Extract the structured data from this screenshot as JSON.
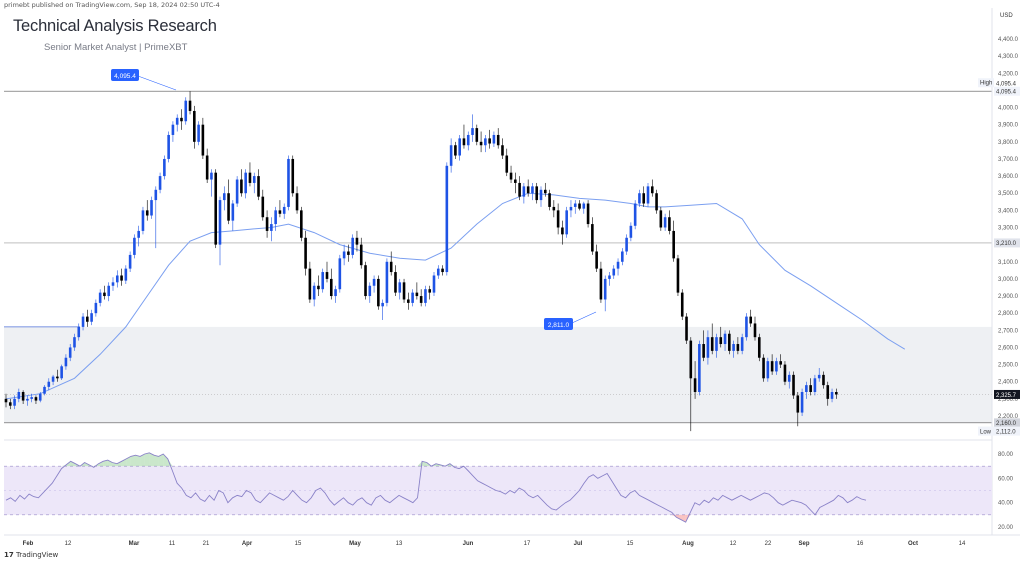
{
  "header": {
    "published_by": "primebt published on TradingView.com, Sep 18, 2024 02:50 UTC-4",
    "title": "Technical Analysis Research",
    "subtitle": "Senior Market Analyst | PrimeXBT"
  },
  "footer": {
    "brand": "TradingView"
  },
  "price_axis": {
    "currency": "USD",
    "ticks": [
      "4,400.0",
      "4,300.0",
      "4,200.0",
      "4,100.0",
      "4,000.0",
      "3,900.0",
      "3,800.0",
      "3,700.0",
      "3,600.0",
      "3,500.0",
      "3,400.0",
      "3,300.0",
      "3,200.0",
      "3,100.0",
      "3,000.0",
      "2,900.0",
      "2,800.0",
      "2,700.0",
      "2,600.0",
      "2,500.0",
      "2,400.0",
      "2,300.0",
      "2,200.0"
    ],
    "tick_values": [
      4400,
      4300,
      4200,
      4100,
      4000,
      3900,
      3800,
      3700,
      3600,
      3500,
      3400,
      3300,
      3200,
      3100,
      3000,
      2900,
      2800,
      2700,
      2600,
      2500,
      2400,
      2300,
      2200
    ]
  },
  "markers": {
    "high_label": "High",
    "high_value": "4,095.4",
    "high_price": 4095.4,
    "high_callout": "4,095.4",
    "level_3210": "3,210.0",
    "level_3210_price": 3210,
    "mid_callout": "2,811.0",
    "current_price": "2,325.7",
    "current_price_value": 2325.7,
    "level_2160": "2,160.0",
    "level_2160_price": 2160,
    "low_label": "Low",
    "low_value": "2,112.0",
    "low_price": 2112
  },
  "rsi": {
    "ticks": [
      "80.00",
      "60.00",
      "40.00",
      "20.00"
    ],
    "tick_values": [
      80,
      60,
      40,
      20
    ],
    "upper_band": 70,
    "lower_band": 30,
    "mid": 50
  },
  "time_axis": {
    "labels": [
      "Feb",
      "12",
      "Mar",
      "11",
      "21",
      "Apr",
      "15",
      "May",
      "13",
      "Jun",
      "17",
      "Jul",
      "15",
      "Aug",
      "12",
      "22",
      "Sep",
      "16",
      "Oct",
      "14"
    ]
  },
  "colors": {
    "up": "#1e53e5",
    "down": "#000000",
    "ma": "#7b9ff0",
    "zone": "#eef0f3",
    "rsi_line": "#8a82c8",
    "rsi_band": "#ede7f9",
    "overbought": "#66bb6a",
    "oversold": "#ef5350"
  },
  "chart_data": {
    "type": "candlestick",
    "x_unit": "candle index (daily)",
    "candles": [
      [
        2300,
        2330,
        2250,
        2280
      ],
      [
        2280,
        2300,
        2240,
        2260
      ],
      [
        2260,
        2320,
        2240,
        2300
      ],
      [
        2300,
        2360,
        2280,
        2340
      ],
      [
        2340,
        2350,
        2270,
        2290
      ],
      [
        2290,
        2320,
        2260,
        2300
      ],
      [
        2300,
        2330,
        2280,
        2310
      ],
      [
        2310,
        2320,
        2270,
        2290
      ],
      [
        2290,
        2340,
        2280,
        2330
      ],
      [
        2330,
        2380,
        2320,
        2370
      ],
      [
        2370,
        2420,
        2350,
        2400
      ],
      [
        2400,
        2440,
        2380,
        2430
      ],
      [
        2430,
        2470,
        2400,
        2420
      ],
      [
        2420,
        2500,
        2410,
        2490
      ],
      [
        2490,
        2560,
        2470,
        2540
      ],
      [
        2540,
        2620,
        2520,
        2600
      ],
      [
        2600,
        2680,
        2580,
        2660
      ],
      [
        2660,
        2740,
        2640,
        2720
      ],
      [
        2720,
        2800,
        2700,
        2780
      ],
      [
        2780,
        2820,
        2720,
        2750
      ],
      [
        2750,
        2820,
        2730,
        2800
      ],
      [
        2800,
        2880,
        2780,
        2860
      ],
      [
        2860,
        2940,
        2840,
        2920
      ],
      [
        2920,
        2960,
        2880,
        2900
      ],
      [
        2900,
        2980,
        2870,
        2960
      ],
      [
        2960,
        3010,
        2930,
        2980
      ],
      [
        2980,
        3050,
        2950,
        3020
      ],
      [
        3020,
        3060,
        2960,
        2990
      ],
      [
        2990,
        3080,
        2970,
        3060
      ],
      [
        3060,
        3160,
        3040,
        3140
      ],
      [
        3140,
        3260,
        3120,
        3240
      ],
      [
        3240,
        3310,
        3190,
        3280
      ],
      [
        3280,
        3420,
        3260,
        3400
      ],
      [
        3400,
        3460,
        3340,
        3370
      ],
      [
        3370,
        3480,
        3350,
        3460
      ],
      [
        3460,
        3540,
        3180,
        3520
      ],
      [
        3520,
        3620,
        3500,
        3600
      ],
      [
        3600,
        3720,
        3580,
        3700
      ],
      [
        3700,
        3860,
        3680,
        3840
      ],
      [
        3840,
        3920,
        3800,
        3900
      ],
      [
        3900,
        3960,
        3860,
        3940
      ],
      [
        3940,
        3990,
        3870,
        3920
      ],
      [
        3920,
        4060,
        3900,
        4040
      ],
      [
        4040,
        4095.4,
        3960,
        3980
      ],
      [
        3980,
        4010,
        3760,
        3800
      ],
      [
        3800,
        3920,
        3780,
        3900
      ],
      [
        3900,
        3940,
        3700,
        3720
      ],
      [
        3720,
        3760,
        3560,
        3580
      ],
      [
        3580,
        3640,
        3480,
        3620
      ],
      [
        3620,
        3640,
        3180,
        3200
      ],
      [
        3200,
        3480,
        3080,
        3460
      ],
      [
        3460,
        3540,
        3400,
        3500
      ],
      [
        3500,
        3580,
        3320,
        3340
      ],
      [
        3340,
        3460,
        3280,
        3440
      ],
      [
        3440,
        3600,
        3420,
        3580
      ],
      [
        3580,
        3640,
        3480,
        3500
      ],
      [
        3500,
        3640,
        3470,
        3620
      ],
      [
        3620,
        3680,
        3540,
        3560
      ],
      [
        3560,
        3620,
        3500,
        3600
      ],
      [
        3600,
        3640,
        3460,
        3480
      ],
      [
        3480,
        3520,
        3340,
        3360
      ],
      [
        3360,
        3400,
        3240,
        3280
      ],
      [
        3280,
        3360,
        3220,
        3320
      ],
      [
        3320,
        3420,
        3280,
        3400
      ],
      [
        3400,
        3460,
        3360,
        3380
      ],
      [
        3380,
        3440,
        3350,
        3420
      ],
      [
        3420,
        3720,
        3400,
        3700
      ],
      [
        3700,
        3720,
        3480,
        3500
      ],
      [
        3500,
        3540,
        3380,
        3400
      ],
      [
        3400,
        3420,
        3220,
        3240
      ],
      [
        3240,
        3280,
        3020,
        3060
      ],
      [
        3060,
        3100,
        2860,
        2880
      ],
      [
        2880,
        2980,
        2840,
        2960
      ],
      [
        2960,
        3020,
        2900,
        2940
      ],
      [
        2940,
        3060,
        2920,
        3040
      ],
      [
        3040,
        3100,
        2980,
        3000
      ],
      [
        3000,
        3060,
        2880,
        2900
      ],
      [
        2900,
        2960,
        2860,
        2940
      ],
      [
        2940,
        3140,
        2920,
        3120
      ],
      [
        3120,
        3200,
        3080,
        3160
      ],
      [
        3160,
        3200,
        3100,
        3140
      ],
      [
        3140,
        3260,
        3120,
        3240
      ],
      [
        3240,
        3280,
        3160,
        3200
      ],
      [
        3200,
        3240,
        3060,
        3080
      ],
      [
        3080,
        3100,
        2880,
        2900
      ],
      [
        2900,
        2980,
        2860,
        2960
      ],
      [
        2960,
        3020,
        2920,
        3000
      ],
      [
        3000,
        3020,
        2820,
        2840
      ],
      [
        2840,
        2880,
        2760,
        2860
      ],
      [
        2860,
        3120,
        2840,
        3100
      ],
      [
        3100,
        3160,
        3020,
        3040
      ],
      [
        3040,
        3080,
        2900,
        2920
      ],
      [
        2920,
        3000,
        2880,
        2980
      ],
      [
        2980,
        3000,
        2860,
        2880
      ],
      [
        2880,
        2920,
        2820,
        2860
      ],
      [
        2860,
        2940,
        2840,
        2920
      ],
      [
        2920,
        2980,
        2880,
        2900
      ],
      [
        2900,
        2940,
        2840,
        2860
      ],
      [
        2860,
        2960,
        2840,
        2940
      ],
      [
        2940,
        2960,
        2880,
        2920
      ],
      [
        2920,
        3040,
        2900,
        3020
      ],
      [
        3020,
        3080,
        3000,
        3060
      ],
      [
        3060,
        3080,
        3020,
        3040
      ],
      [
        3040,
        3680,
        3020,
        3660
      ],
      [
        3660,
        3820,
        3620,
        3780
      ],
      [
        3780,
        3800,
        3700,
        3720
      ],
      [
        3720,
        3840,
        3690,
        3820
      ],
      [
        3820,
        3900,
        3760,
        3780
      ],
      [
        3780,
        3860,
        3750,
        3840
      ],
      [
        3840,
        3960,
        3800,
        3880
      ],
      [
        3880,
        3900,
        3780,
        3800
      ],
      [
        3800,
        3860,
        3740,
        3780
      ],
      [
        3780,
        3840,
        3740,
        3820
      ],
      [
        3820,
        3870,
        3760,
        3790
      ],
      [
        3790,
        3860,
        3770,
        3840
      ],
      [
        3840,
        3880,
        3760,
        3780
      ],
      [
        3780,
        3820,
        3700,
        3720
      ],
      [
        3720,
        3760,
        3600,
        3620
      ],
      [
        3620,
        3660,
        3560,
        3580
      ],
      [
        3580,
        3620,
        3500,
        3560
      ],
      [
        3560,
        3600,
        3460,
        3480
      ],
      [
        3480,
        3560,
        3440,
        3540
      ],
      [
        3540,
        3580,
        3480,
        3500
      ],
      [
        3500,
        3560,
        3460,
        3540
      ],
      [
        3540,
        3560,
        3440,
        3460
      ],
      [
        3460,
        3540,
        3420,
        3520
      ],
      [
        3520,
        3560,
        3480,
        3500
      ],
      [
        3500,
        3520,
        3400,
        3420
      ],
      [
        3420,
        3460,
        3360,
        3400
      ],
      [
        3400,
        3440,
        3260,
        3300
      ],
      [
        3300,
        3340,
        3200,
        3260
      ],
      [
        3260,
        3420,
        3240,
        3400
      ],
      [
        3400,
        3460,
        3360,
        3420
      ],
      [
        3420,
        3460,
        3380,
        3440
      ],
      [
        3440,
        3460,
        3400,
        3410
      ],
      [
        3410,
        3450,
        3380,
        3440
      ],
      [
        3440,
        3460,
        3300,
        3320
      ],
      [
        3320,
        3360,
        3140,
        3160
      ],
      [
        3160,
        3200,
        3040,
        3060
      ],
      [
        3060,
        3100,
        2860,
        2880
      ],
      [
        2880,
        3020,
        2811,
        3000
      ],
      [
        3000,
        3040,
        2960,
        3020
      ],
      [
        3020,
        3080,
        3000,
        3060
      ],
      [
        3060,
        3120,
        3020,
        3100
      ],
      [
        3100,
        3180,
        3080,
        3160
      ],
      [
        3160,
        3260,
        3140,
        3240
      ],
      [
        3240,
        3330,
        3220,
        3310
      ],
      [
        3310,
        3460,
        3290,
        3440
      ],
      [
        3440,
        3520,
        3420,
        3500
      ],
      [
        3500,
        3540,
        3420,
        3440
      ],
      [
        3440,
        3560,
        3420,
        3540
      ],
      [
        3540,
        3580,
        3480,
        3500
      ],
      [
        3500,
        3520,
        3380,
        3400
      ],
      [
        3400,
        3420,
        3280,
        3300
      ],
      [
        3300,
        3380,
        3280,
        3360
      ],
      [
        3360,
        3400,
        3260,
        3280
      ],
      [
        3280,
        3340,
        3100,
        3120
      ],
      [
        3120,
        3140,
        2900,
        2920
      ],
      [
        2920,
        2940,
        2760,
        2780
      ],
      [
        2780,
        2800,
        2620,
        2640
      ],
      [
        2640,
        2660,
        2112,
        2420
      ],
      [
        2420,
        2520,
        2300,
        2340
      ],
      [
        2340,
        2640,
        2320,
        2620
      ],
      [
        2620,
        2700,
        2520,
        2540
      ],
      [
        2540,
        2700,
        2500,
        2660
      ],
      [
        2660,
        2740,
        2560,
        2580
      ],
      [
        2580,
        2680,
        2540,
        2660
      ],
      [
        2660,
        2720,
        2600,
        2620
      ],
      [
        2620,
        2700,
        2580,
        2680
      ],
      [
        2680,
        2700,
        2560,
        2580
      ],
      [
        2580,
        2640,
        2540,
        2620
      ],
      [
        2620,
        2660,
        2560,
        2580
      ],
      [
        2580,
        2680,
        2560,
        2660
      ],
      [
        2660,
        2800,
        2640,
        2780
      ],
      [
        2780,
        2820,
        2720,
        2740
      ],
      [
        2740,
        2780,
        2640,
        2660
      ],
      [
        2660,
        2680,
        2520,
        2540
      ],
      [
        2540,
        2560,
        2400,
        2420
      ],
      [
        2420,
        2540,
        2400,
        2520
      ],
      [
        2520,
        2560,
        2440,
        2460
      ],
      [
        2460,
        2540,
        2440,
        2520
      ],
      [
        2520,
        2560,
        2480,
        2500
      ],
      [
        2500,
        2520,
        2380,
        2400
      ],
      [
        2400,
        2460,
        2360,
        2440
      ],
      [
        2440,
        2460,
        2300,
        2320
      ],
      [
        2320,
        2340,
        2140,
        2220
      ],
      [
        2220,
        2360,
        2200,
        2340
      ],
      [
        2340,
        2400,
        2300,
        2380
      ],
      [
        2380,
        2420,
        2320,
        2340
      ],
      [
        2340,
        2440,
        2320,
        2420
      ],
      [
        2420,
        2480,
        2400,
        2440
      ],
      [
        2440,
        2460,
        2360,
        2380
      ],
      [
        2380,
        2400,
        2260,
        2300
      ],
      [
        2300,
        2360,
        2280,
        2340
      ],
      [
        2340,
        2360,
        2300,
        2325.7
      ]
    ],
    "moving_average": [
      2300,
      2330,
      2420,
      2560,
      2720,
      2900,
      3080,
      3220,
      3270,
      3280,
      3290,
      3300,
      3320,
      3270,
      3200,
      3150,
      3120,
      3110,
      3180,
      3320,
      3440,
      3500,
      3490,
      3470,
      3460,
      3440,
      3420,
      3420,
      3430,
      3440,
      3350,
      3200,
      3050,
      2960,
      2860,
      2760,
      2650,
      2590
    ],
    "ma_x": [
      0,
      8,
      16,
      22,
      28,
      33,
      38,
      43,
      48,
      53,
      57,
      62,
      66,
      72,
      78,
      85,
      92,
      98,
      104,
      110,
      116,
      122,
      128,
      134,
      140,
      146,
      150,
      154,
      160,
      166,
      172,
      176,
      182,
      188,
      194,
      200,
      206,
      210
    ],
    "rsi": [
      42,
      44,
      41,
      46,
      43,
      47,
      45,
      44,
      48,
      52,
      56,
      62,
      68,
      71,
      74,
      72,
      70,
      73,
      71,
      69,
      72,
      74,
      75,
      73,
      72,
      74,
      76,
      78,
      79,
      78,
      80,
      81,
      79,
      78,
      80,
      76,
      66,
      56,
      52,
      46,
      44,
      48,
      43,
      41,
      46,
      42,
      50,
      48,
      40,
      44,
      46,
      45,
      50,
      48,
      42,
      40,
      44,
      48,
      46,
      44,
      42,
      45,
      50,
      46,
      42,
      40,
      44,
      50,
      52,
      48,
      42,
      38,
      41,
      44,
      40,
      38,
      42,
      44,
      40,
      38,
      44,
      46,
      42,
      40,
      43,
      46,
      44,
      42,
      40,
      44,
      74,
      73,
      70,
      72,
      71,
      70,
      72,
      69,
      68,
      70,
      66,
      62,
      58,
      56,
      54,
      52,
      50,
      49,
      47,
      50,
      48,
      52,
      50,
      46,
      44,
      46,
      42,
      38,
      35,
      34,
      37,
      40,
      42,
      46,
      50,
      56,
      61,
      63,
      60,
      62,
      64,
      58,
      52,
      46,
      44,
      48,
      50,
      46,
      44,
      42,
      40,
      38,
      36,
      34,
      32,
      28,
      26,
      24,
      32,
      40,
      38,
      42,
      40,
      44,
      42,
      46,
      44,
      42,
      44,
      46,
      44,
      42,
      44,
      46,
      48,
      47,
      44,
      40,
      38,
      40,
      42,
      41,
      40,
      38,
      34,
      30,
      36,
      38,
      40,
      42,
      46,
      44,
      40,
      42,
      45,
      43,
      42
    ]
  }
}
